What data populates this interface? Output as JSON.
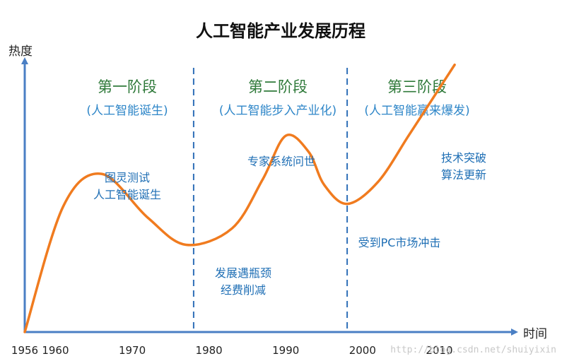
{
  "chart_data": {
    "type": "line",
    "title": "人工智能产业发展历程",
    "ylabel": "热度",
    "xlabel": "时间",
    "x_ticks": [
      "1956",
      "1960",
      "1970",
      "1980",
      "1990",
      "2000",
      "2010"
    ],
    "x_tick_values": [
      1956,
      1960,
      1970,
      1980,
      1990,
      2000,
      2010
    ],
    "xlim": [
      1956,
      2020
    ],
    "ylim": [
      0,
      10
    ],
    "series": [
      {
        "color": "#f07b1f",
        "x": [
          1956,
          1961,
          1966,
          1972,
          1977,
          1983,
          1987,
          1990,
          1993,
          1995,
          1998,
          2002,
          2006,
          2009,
          2012
        ],
        "y": [
          0,
          4.6,
          5.8,
          4.2,
          3.2,
          3.8,
          5.6,
          7.2,
          6.6,
          5.4,
          4.7,
          5.5,
          7.2,
          8.5,
          9.8
        ]
      }
    ],
    "dividers": [
      1978,
      1998
    ],
    "divider_color": "#2f6fb8",
    "phases": [
      {
        "name": "第一阶段",
        "desc": "(人工智能诞生)"
      },
      {
        "name": "第二阶段",
        "desc": "(人工智能步入产业化)"
      },
      {
        "name": "第三阶段",
        "desc": "(人工智能赢来爆发)"
      }
    ],
    "annotations": [
      {
        "lines": [
          "图灵测试",
          "人工智能诞生"
        ]
      },
      {
        "lines": [
          "发展遇瓶颈",
          "经费削减"
        ]
      },
      {
        "lines": [
          "专家系统问世"
        ]
      },
      {
        "lines": [
          "受到PC市场冲击"
        ]
      },
      {
        "lines": [
          "技术突破",
          "算法更新"
        ]
      }
    ],
    "axis_color": "#4a7fc4",
    "grid": false
  },
  "watermark": "http://blog.csdn.net/shuiyixin"
}
